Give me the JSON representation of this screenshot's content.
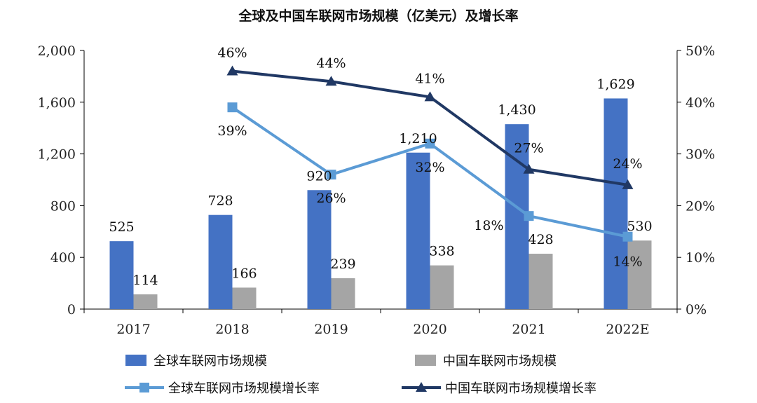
{
  "chart_data": {
    "type": "bar",
    "title": "全球及中国车联网市场规模（亿美元）及增长率",
    "categories": [
      "2017",
      "2018",
      "2019",
      "2020",
      "2021",
      "2022E"
    ],
    "ylim_left": [
      0,
      2000
    ],
    "yticks_left": [
      "0",
      "400",
      "800",
      "1,200",
      "1,600",
      "2,000"
    ],
    "ylim_right": [
      0,
      50
    ],
    "yticks_right": [
      "0%",
      "10%",
      "20%",
      "30%",
      "40%",
      "50%"
    ],
    "grid": false,
    "legend_position": "bottom",
    "series": [
      {
        "name": "全球车联网市场规模",
        "kind": "bar",
        "axis": "left",
        "color": "#4472C4",
        "values": [
          525,
          728,
          920,
          1210,
          1430,
          1629
        ],
        "labels": [
          "525",
          "728",
          "920",
          "1,210",
          "1,430",
          "1,629"
        ]
      },
      {
        "name": "中国车联网市场规模",
        "kind": "bar",
        "axis": "left",
        "color": "#A5A5A5",
        "values": [
          114,
          166,
          239,
          338,
          428,
          530
        ],
        "labels": [
          "114",
          "166",
          "239",
          "338",
          "428",
          "530"
        ]
      },
      {
        "name": "全球车联网市场规模增长率",
        "kind": "line",
        "axis": "right",
        "color": "#5B9BD5",
        "marker": "square",
        "values": [
          null,
          39,
          26,
          32,
          18,
          14
        ],
        "labels": [
          null,
          "39%",
          "26%",
          "32%",
          "18%",
          "14%"
        ]
      },
      {
        "name": "中国车联网市场规模增长率",
        "kind": "line",
        "axis": "right",
        "color": "#203864",
        "marker": "triangle",
        "values": [
          null,
          46,
          44,
          41,
          27,
          24
        ],
        "labels": [
          null,
          "46%",
          "44%",
          "41%",
          "27%",
          "24%"
        ]
      }
    ]
  }
}
